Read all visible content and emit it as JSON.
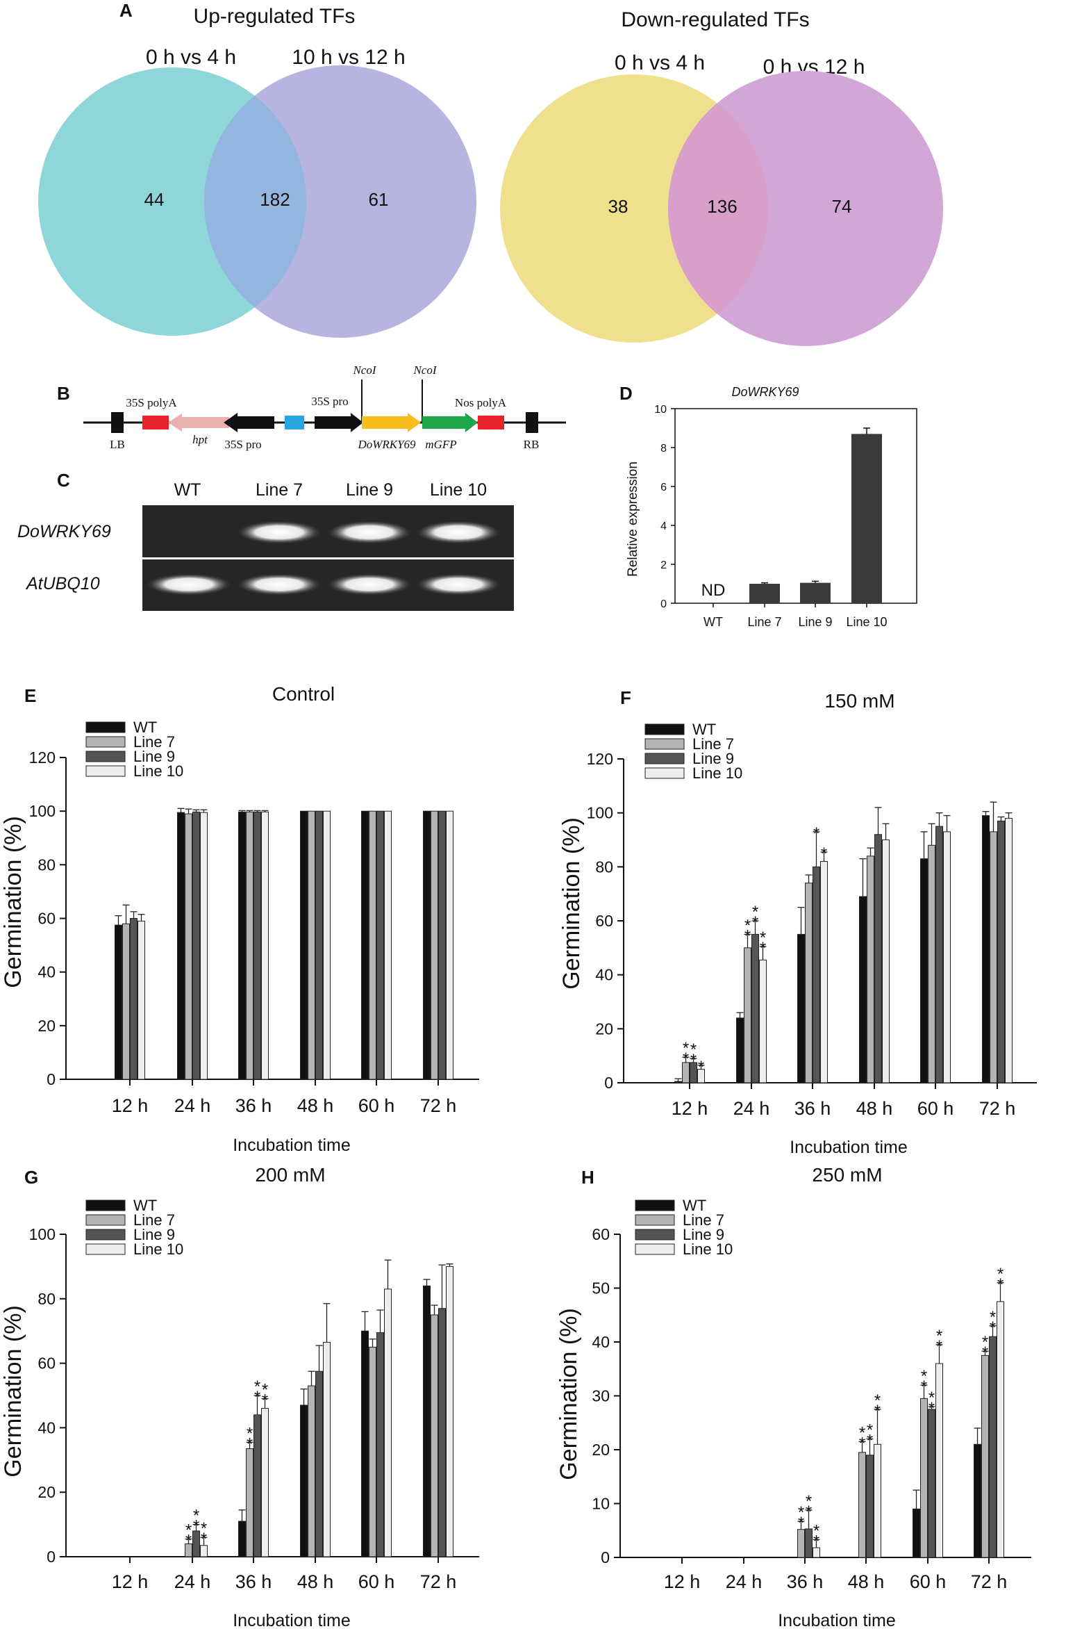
{
  "panels": {
    "A": "A",
    "B": "B",
    "C": "C",
    "D": "D",
    "E": "E",
    "F": "F",
    "G": "G",
    "H": "H"
  },
  "venn_up": {
    "title": "Up-regulated TFs",
    "left_label": "0 h vs 4 h",
    "right_label": "10 h vs 12 h",
    "left_only": "44",
    "overlap": "182",
    "right_only": "61",
    "colors": {
      "left": "#8fd6d8",
      "right": "#b8b4e0",
      "overlap": "#92b6e0"
    }
  },
  "venn_down": {
    "title": "Down-regulated TFs",
    "left_label": "0 h vs 4 h",
    "right_label": "0 h vs 12 h",
    "left_only": "38",
    "overlap": "136",
    "right_only": "74",
    "colors": {
      "left": "#efe08e",
      "right": "#d3a6d8",
      "overlap": "#d8a0c8"
    }
  },
  "construct": {
    "labels": {
      "lb": "LB",
      "rb": "RB",
      "polyA_35s": "35S polyA",
      "hpt": "hpt",
      "pro_35s_left": "35S pro",
      "pro_35s_right": "35S pro",
      "nco_left": "NcoI",
      "nco_right": "NcoI",
      "gene": "DoWRKY69",
      "gfp": "mGFP",
      "nos": "Nos polyA"
    },
    "colors": {
      "red": "#e8222a",
      "pink": "#e9b0b2",
      "black": "#111111",
      "blue": "#2aa7df",
      "yellow": "#f6be1a",
      "green": "#1fa64a"
    }
  },
  "gel": {
    "lanes": [
      "WT",
      "Line 7",
      "Line 9",
      "Line 10"
    ],
    "genes": [
      "DoWRKY69",
      "AtUBQ10"
    ]
  },
  "expression": {
    "title": "DoWRKY69",
    "ylabel": "Relative expression",
    "nd_label": "ND"
  },
  "germination": {
    "ylabel": "Germination (%)",
    "xlabel": "Incubation time",
    "legend": [
      "WT",
      "Line 7",
      "Line 9",
      "Line 10"
    ],
    "colors": [
      "#111111",
      "#b4b4b4",
      "#555555",
      "#ededed"
    ]
  },
  "chart_data": [
    {
      "id": "D",
      "type": "bar",
      "title": "DoWRKY69",
      "xlabel": "",
      "ylabel": "Relative expression",
      "categories": [
        "WT",
        "Line 7",
        "Line 9",
        "Line 10"
      ],
      "values": [
        0,
        1.0,
        1.05,
        8.7
      ],
      "errors": [
        0,
        0.05,
        0.08,
        0.3
      ],
      "ylim": [
        0,
        10
      ],
      "yticks": [
        0,
        2,
        4,
        6,
        8,
        10
      ]
    },
    {
      "id": "E",
      "type": "bar",
      "title": "Control",
      "xlabel": "Incubation time",
      "ylabel": "Germination (%)",
      "categories": [
        "12 h",
        "24 h",
        "36 h",
        "48 h",
        "60 h",
        "72 h"
      ],
      "ylim": [
        0,
        120
      ],
      "yticks": [
        0,
        20,
        40,
        60,
        80,
        100,
        120
      ],
      "series": [
        {
          "name": "WT",
          "values": [
            57.5,
            99.5,
            99.7,
            100,
            100,
            100
          ],
          "errors": [
            3.5,
            1.5,
            0.5,
            0,
            0,
            0
          ],
          "sig": [
            "",
            "",
            "",
            "",
            "",
            ""
          ]
        },
        {
          "name": "Line 7",
          "values": [
            58,
            99,
            99.7,
            100,
            100,
            100
          ],
          "errors": [
            7,
            1.8,
            0.5,
            0,
            0,
            0
          ],
          "sig": [
            "",
            "",
            "",
            "",
            "",
            ""
          ]
        },
        {
          "name": "Line 9",
          "values": [
            60,
            99.7,
            99.7,
            100,
            100,
            100
          ],
          "errors": [
            2.5,
            0.8,
            0.5,
            0,
            0,
            0
          ],
          "sig": [
            "",
            "",
            "",
            "",
            "",
            ""
          ]
        },
        {
          "name": "Line 10",
          "values": [
            59,
            99.5,
            99.7,
            100,
            100,
            100
          ],
          "errors": [
            2.5,
            1,
            0.5,
            0,
            0,
            0
          ],
          "sig": [
            "",
            "",
            "",
            "",
            "",
            ""
          ]
        }
      ]
    },
    {
      "id": "F",
      "type": "bar",
      "title": "150 mM",
      "xlabel": "Incubation time",
      "ylabel": "Germination (%)",
      "categories": [
        "12 h",
        "24 h",
        "36 h",
        "48 h",
        "60 h",
        "72 h"
      ],
      "ylim": [
        0,
        120
      ],
      "yticks": [
        0,
        20,
        40,
        60,
        80,
        100,
        120
      ],
      "series": [
        {
          "name": "WT",
          "values": [
            0.5,
            24,
            55,
            69,
            83,
            99
          ],
          "errors": [
            1,
            2,
            10,
            14,
            10,
            1.5
          ],
          "sig": [
            "",
            "",
            "",
            "",
            "",
            ""
          ]
        },
        {
          "name": "Line 7",
          "values": [
            7.5,
            50,
            74,
            84,
            88,
            93
          ],
          "errors": [
            2,
            5,
            3,
            3,
            8,
            11
          ],
          "sig": [
            "**",
            "**",
            "",
            "",
            "",
            ""
          ]
        },
        {
          "name": "Line 9",
          "values": [
            7.5,
            55,
            80,
            92,
            95,
            97
          ],
          "errors": [
            1.5,
            5,
            13,
            10,
            5,
            1.5
          ],
          "sig": [
            "**",
            "**",
            "*",
            "",
            "",
            ""
          ]
        },
        {
          "name": "Line 10",
          "values": [
            5,
            45.5,
            82,
            90,
            93,
            98
          ],
          "errors": [
            1.5,
            5,
            3.5,
            6,
            6,
            2
          ],
          "sig": [
            "*",
            "**",
            "*",
            "",
            "",
            ""
          ]
        }
      ]
    },
    {
      "id": "G",
      "type": "bar",
      "title": "200 mM",
      "xlabel": "Incubation time",
      "ylabel": "Germination (%)",
      "categories": [
        "12 h",
        "24 h",
        "36 h",
        "48 h",
        "60 h",
        "72 h"
      ],
      "ylim": [
        0,
        100
      ],
      "yticks": [
        0,
        20,
        40,
        60,
        80,
        100
      ],
      "series": [
        {
          "name": "WT",
          "values": [
            0,
            0,
            11,
            47,
            70,
            84
          ],
          "errors": [
            0,
            0,
            3.5,
            5,
            6,
            2
          ],
          "sig": [
            "",
            "",
            "",
            "",
            "",
            ""
          ]
        },
        {
          "name": "Line 7",
          "values": [
            0,
            4,
            33.5,
            53,
            65,
            75
          ],
          "errors": [
            0,
            1.5,
            2,
            4.5,
            2.5,
            3
          ],
          "sig": [
            "",
            "**",
            "**",
            "",
            "",
            ""
          ]
        },
        {
          "name": "Line 9",
          "values": [
            0,
            8,
            44,
            57.5,
            69.5,
            77
          ],
          "errors": [
            0,
            2,
            6,
            8,
            7,
            13.5
          ],
          "sig": [
            "",
            "**",
            "**",
            "",
            "",
            ""
          ]
        },
        {
          "name": "Line 10",
          "values": [
            0,
            3.5,
            46,
            66.5,
            83,
            90
          ],
          "errors": [
            0,
            2.5,
            3,
            12,
            9,
            0.8
          ],
          "sig": [
            "",
            "**",
            "**",
            "",
            "",
            ""
          ]
        }
      ]
    },
    {
      "id": "H",
      "type": "bar",
      "title": "250 mM",
      "xlabel": "Incubation time",
      "ylabel": "Germination (%)",
      "categories": [
        "12 h",
        "24 h",
        "36 h",
        "48 h",
        "60 h",
        "72 h"
      ],
      "ylim": [
        0,
        60
      ],
      "yticks": [
        0,
        10,
        20,
        30,
        40,
        50,
        60
      ],
      "series": [
        {
          "name": "WT",
          "values": [
            0,
            0,
            0,
            0,
            9,
            21
          ],
          "errors": [
            0,
            0,
            0,
            0,
            3.5,
            3
          ],
          "sig": [
            "",
            "",
            "",
            "",
            "",
            ""
          ]
        },
        {
          "name": "Line 7",
          "values": [
            0,
            0,
            5.2,
            19.5,
            29.5,
            37.5
          ],
          "errors": [
            0,
            0,
            1.5,
            2,
            2.5,
            0.8
          ],
          "sig": [
            "",
            "",
            "**",
            "**",
            "**",
            "**"
          ]
        },
        {
          "name": "Line 9",
          "values": [
            0,
            0,
            5.3,
            19,
            27.5,
            41
          ],
          "errors": [
            0,
            0,
            3.5,
            3,
            0.5,
            2
          ],
          "sig": [
            "",
            "",
            "**",
            "**",
            "**",
            "**"
          ]
        },
        {
          "name": "Line 10",
          "values": [
            0,
            0,
            1.8,
            21,
            36,
            47.5
          ],
          "errors": [
            0,
            0,
            1.5,
            6.5,
            3.5,
            3.5
          ],
          "sig": [
            "",
            "",
            "**",
            "**",
            "**",
            "**"
          ]
        }
      ]
    }
  ]
}
